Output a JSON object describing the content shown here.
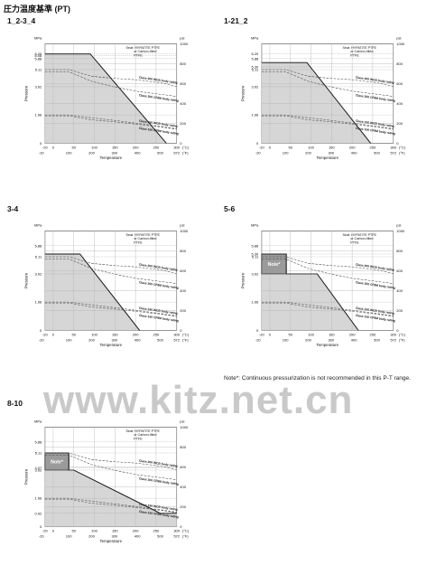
{
  "page_title": "圧力温度基準 (PT)",
  "watermark": "www.kitz.net.cn",
  "footnote": "Note*: Continuous pressurization is not recommended in this P-T range.",
  "chart_data": [
    {
      "type": "line",
      "label": "1_2-3_4",
      "seat_text": [
        "Seat: HYPATITE PTFE",
        "or Carbon-filled",
        "PTFE"
      ],
      "yticks_mpa": [
        0,
        1.96,
        3.92,
        5.11,
        5.88,
        6.08,
        6.2
      ],
      "note_label": "",
      "seat_rating": [
        [
          -20,
          6.2
        ],
        [
          90,
          6.2
        ],
        [
          275,
          0
        ]
      ],
      "series": [
        {
          "name": "Class 300 WCB body rating",
          "points": [
            [
              -20,
              5.11
            ],
            [
              38,
              5.11
            ],
            [
              93,
              4.65
            ],
            [
              149,
              4.5
            ],
            [
              204,
              4.4
            ],
            [
              260,
              4.2
            ],
            [
              300,
              3.95
            ]
          ]
        },
        {
          "name": "Class 300 CF8M body rating",
          "points": [
            [
              -20,
              4.96
            ],
            [
              38,
              4.96
            ],
            [
              93,
              4.3
            ],
            [
              149,
              3.9
            ],
            [
              204,
              3.6
            ],
            [
              260,
              3.4
            ],
            [
              300,
              3.25
            ]
          ]
        },
        {
          "name": "Class 150 WCB body rating",
          "points": [
            [
              -20,
              1.96
            ],
            [
              38,
              1.96
            ],
            [
              93,
              1.77
            ],
            [
              149,
              1.58
            ],
            [
              204,
              1.38
            ],
            [
              260,
              1.17
            ],
            [
              300,
              1.0
            ]
          ]
        },
        {
          "name": "Class 150 CF8M body rating",
          "points": [
            [
              -20,
              1.9
            ],
            [
              38,
              1.9
            ],
            [
              93,
              1.62
            ],
            [
              149,
              1.48
            ],
            [
              204,
              1.31
            ],
            [
              260,
              1.13
            ],
            [
              300,
              0.97
            ]
          ]
        }
      ]
    },
    {
      "type": "line",
      "label": "1-21_2",
      "seat_text": [
        "Seat: HYPATITE PTFE",
        "or Carbon-filled",
        "PTFE"
      ],
      "yticks_mpa": [
        0,
        1.96,
        3.92,
        5.11,
        5.3,
        5.88,
        6.2
      ],
      "note_label": "",
      "seat_rating": [
        [
          -20,
          5.6
        ],
        [
          90,
          5.6
        ],
        [
          245,
          0
        ]
      ],
      "series": [
        {
          "name": "Class 300 WCB body rating",
          "points": [
            [
              -20,
              5.11
            ],
            [
              38,
              5.11
            ],
            [
              93,
              4.65
            ],
            [
              149,
              4.5
            ],
            [
              204,
              4.4
            ],
            [
              260,
              4.2
            ],
            [
              300,
              3.95
            ]
          ]
        },
        {
          "name": "Class 300 CF8M body rating",
          "points": [
            [
              -20,
              4.96
            ],
            [
              38,
              4.96
            ],
            [
              93,
              4.3
            ],
            [
              149,
              3.9
            ],
            [
              204,
              3.6
            ],
            [
              260,
              3.4
            ],
            [
              300,
              3.25
            ]
          ]
        },
        {
          "name": "Class 150 WCB body rating",
          "points": [
            [
              -20,
              1.96
            ],
            [
              38,
              1.96
            ],
            [
              93,
              1.77
            ],
            [
              149,
              1.58
            ],
            [
              204,
              1.38
            ],
            [
              260,
              1.17
            ],
            [
              300,
              1.0
            ]
          ]
        },
        {
          "name": "Class 150 CF8M body rating",
          "points": [
            [
              -20,
              1.9
            ],
            [
              38,
              1.9
            ],
            [
              93,
              1.62
            ],
            [
              149,
              1.48
            ],
            [
              204,
              1.31
            ],
            [
              260,
              1.13
            ],
            [
              300,
              0.97
            ]
          ]
        }
      ]
    },
    {
      "type": "line",
      "label": "3-4",
      "seat_text": [
        "Seat: HYPATITE PTFE",
        "or Carbon-filled",
        "PTFE"
      ],
      "yticks_mpa": [
        0,
        1.96,
        3.92,
        5.11,
        5.88
      ],
      "note_label": "",
      "seat_rating": [
        [
          -20,
          5.3
        ],
        [
          65,
          5.3
        ],
        [
          210,
          0
        ]
      ],
      "series": [
        {
          "name": "Class 300 WCB body rating",
          "points": [
            [
              -20,
              5.11
            ],
            [
              38,
              5.11
            ],
            [
              93,
              4.65
            ],
            [
              149,
              4.5
            ],
            [
              204,
              4.4
            ],
            [
              260,
              4.2
            ],
            [
              300,
              3.95
            ]
          ]
        },
        {
          "name": "Class 300 CF8M body rating",
          "points": [
            [
              -20,
              4.96
            ],
            [
              38,
              4.96
            ],
            [
              93,
              4.3
            ],
            [
              149,
              3.9
            ],
            [
              204,
              3.6
            ],
            [
              260,
              3.4
            ],
            [
              300,
              3.25
            ]
          ]
        },
        {
          "name": "Class 150 WCB body rating",
          "points": [
            [
              -20,
              1.96
            ],
            [
              38,
              1.96
            ],
            [
              93,
              1.77
            ],
            [
              149,
              1.58
            ],
            [
              204,
              1.38
            ],
            [
              260,
              1.17
            ],
            [
              300,
              1.0
            ]
          ]
        },
        {
          "name": "Class 150 CF8M body rating",
          "points": [
            [
              -20,
              1.9
            ],
            [
              38,
              1.9
            ],
            [
              93,
              1.62
            ],
            [
              149,
              1.48
            ],
            [
              204,
              1.31
            ],
            [
              260,
              1.13
            ],
            [
              300,
              0.97
            ]
          ]
        }
      ]
    },
    {
      "type": "line",
      "label": "5-6",
      "seat_text": [
        "Seat: HYPATITE PTFE",
        "or Carbon-filled",
        "PTFE"
      ],
      "yticks_mpa": [
        0,
        1.96,
        3.92,
        5.11,
        5.3,
        5.88
      ],
      "note_label": "Note*",
      "note_box": [
        [
          -20,
          3.92
        ],
        [
          40,
          5.3
        ]
      ],
      "seat_rating": [
        [
          -20,
          5.3
        ],
        [
          40,
          5.3
        ],
        [
          40,
          3.92
        ],
        [
          115,
          3.92
        ],
        [
          215,
          0
        ]
      ],
      "series": [
        {
          "name": "Class 300 WCB body rating",
          "points": [
            [
              -20,
              5.11
            ],
            [
              38,
              5.11
            ],
            [
              93,
              4.65
            ],
            [
              149,
              4.5
            ],
            [
              204,
              4.4
            ],
            [
              260,
              4.2
            ],
            [
              300,
              3.95
            ]
          ]
        },
        {
          "name": "Class 300 CF8M body rating",
          "points": [
            [
              -20,
              4.96
            ],
            [
              38,
              4.96
            ],
            [
              93,
              4.3
            ],
            [
              149,
              3.9
            ],
            [
              204,
              3.6
            ],
            [
              260,
              3.4
            ],
            [
              300,
              3.25
            ]
          ]
        },
        {
          "name": "Class 150 WCB body rating",
          "points": [
            [
              -20,
              1.96
            ],
            [
              38,
              1.96
            ],
            [
              93,
              1.77
            ],
            [
              149,
              1.58
            ],
            [
              204,
              1.38
            ],
            [
              260,
              1.17
            ],
            [
              300,
              1.0
            ]
          ]
        },
        {
          "name": "Class 150 CF8M body rating",
          "points": [
            [
              -20,
              1.9
            ],
            [
              38,
              1.9
            ],
            [
              93,
              1.62
            ],
            [
              149,
              1.48
            ],
            [
              204,
              1.31
            ],
            [
              260,
              1.13
            ],
            [
              300,
              0.97
            ]
          ]
        }
      ]
    },
    {
      "type": "line",
      "label": "8-10",
      "seat_text": [
        "Seat: HYPATITE PTFE",
        "or Carbon-filled",
        "PTFE"
      ],
      "yticks_mpa": [
        0,
        0.92,
        1.96,
        3.92,
        4.07,
        5.11,
        5.88
      ],
      "note_label": "Note*",
      "note_box": [
        [
          -20,
          3.92
        ],
        [
          38,
          5.11
        ]
      ],
      "seat_rating": [
        [
          -20,
          5.11
        ],
        [
          38,
          5.11
        ],
        [
          38,
          3.92
        ],
        [
          50,
          3.92
        ],
        [
          260,
          0.92
        ],
        [
          300,
          0.92
        ]
      ],
      "series": [
        {
          "name": "Class 300 WCB body rating",
          "points": [
            [
              -20,
              5.11
            ],
            [
              38,
              5.11
            ],
            [
              93,
              4.65
            ],
            [
              149,
              4.5
            ],
            [
              204,
              4.4
            ],
            [
              260,
              4.2
            ],
            [
              300,
              3.95
            ]
          ]
        },
        {
          "name": "Class 300 CF8M body rating",
          "points": [
            [
              -20,
              4.96
            ],
            [
              38,
              4.96
            ],
            [
              93,
              4.3
            ],
            [
              149,
              3.9
            ],
            [
              204,
              3.6
            ],
            [
              260,
              3.4
            ],
            [
              300,
              3.25
            ]
          ]
        },
        {
          "name": "Class 150 WCB body rating",
          "points": [
            [
              -20,
              1.96
            ],
            [
              38,
              1.96
            ],
            [
              93,
              1.77
            ],
            [
              149,
              1.58
            ],
            [
              204,
              1.38
            ],
            [
              260,
              1.17
            ],
            [
              300,
              1.0
            ]
          ]
        },
        {
          "name": "Class 150 CF8M body rating",
          "points": [
            [
              -20,
              1.9
            ],
            [
              38,
              1.9
            ],
            [
              93,
              1.62
            ],
            [
              149,
              1.48
            ],
            [
              204,
              1.31
            ],
            [
              260,
              1.13
            ],
            [
              300,
              0.97
            ]
          ]
        }
      ]
    }
  ],
  "axes": {
    "x_c_ticks": [
      -20,
      0,
      50,
      100,
      150,
      200,
      250,
      300
    ],
    "x_c_unit": "(°C)",
    "x_f_ticks": [
      -20,
      100,
      200,
      300,
      400,
      500,
      572
    ],
    "x_f_unit": "(°F)",
    "xlabel": "Temperature",
    "ylabel": "Pressure",
    "y_unit_left": "MPa",
    "y_unit_right": "psi",
    "y_psi_ticks": [
      0,
      200,
      400,
      600,
      800,
      1000
    ],
    "x_range": [
      -20,
      300
    ],
    "y_range": [
      0,
      6.895
    ],
    "grid": true
  },
  "colors": {
    "fill": "#d6d6d6",
    "line": "#111111",
    "grid": "#b8b8b8",
    "note_fill": "#9b9b9b"
  }
}
